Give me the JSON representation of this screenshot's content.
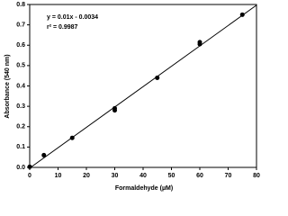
{
  "chart_data": {
    "type": "scatter",
    "x_label": "Formaldehyde (µM)",
    "y_label": "Absorbance (540 nm)",
    "annotations": [
      "y = 0.01x - 0.0034",
      "r² = 0.9987"
    ],
    "x": [
      0,
      5,
      15,
      30,
      30,
      45,
      60,
      60,
      75
    ],
    "y": [
      0.003,
      0.06,
      0.145,
      0.28,
      0.29,
      0.44,
      0.605,
      0.615,
      0.75
    ],
    "color": "#000000",
    "fit_line": {
      "x": [
        0,
        80
      ],
      "y": [
        -0.0034,
        0.7966
      ]
    },
    "xlim": [
      0,
      80
    ],
    "xticks": [
      0,
      10,
      20,
      30,
      40,
      50,
      60,
      70,
      80
    ],
    "ylim": [
      0,
      0.8
    ],
    "yticks": [
      {
        "value": 0,
        "label": "0.0"
      },
      0.1,
      0.2,
      0.3,
      0.4,
      0.5,
      0.6,
      0.7,
      0.8
    ],
    "grid": false
  }
}
